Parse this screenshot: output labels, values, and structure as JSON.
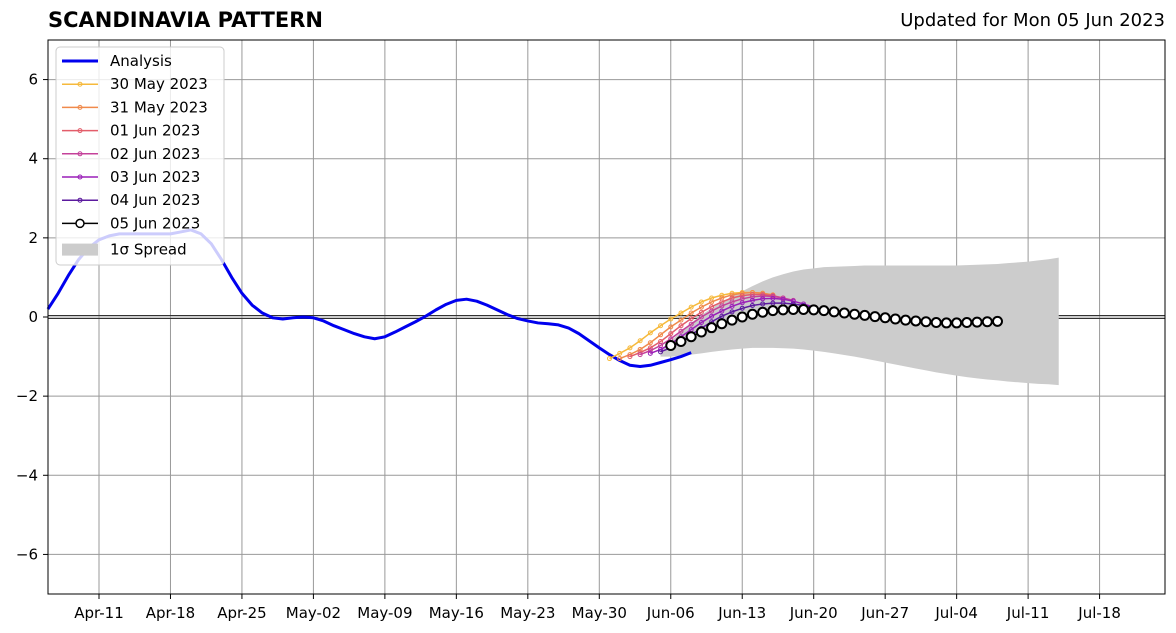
{
  "chart_data": {
    "type": "line",
    "title": "SCANDINAVIA PATTERN",
    "subtitle": "Updated for Mon 05 Jun 2023",
    "ylim": [
      -7,
      7
    ],
    "yticks": [
      -6,
      -4,
      -2,
      0,
      2,
      4,
      6
    ],
    "ytick_labels": [
      "−6",
      "−4",
      "−2",
      "0",
      "2",
      "4",
      "6"
    ],
    "xticks": [
      "Apr-11",
      "Apr-18",
      "Apr-25",
      "May-02",
      "May-09",
      "May-16",
      "May-23",
      "May-30",
      "Jun-06",
      "Jun-13",
      "Jun-20",
      "Jun-27",
      "Jul-04",
      "Jul-11",
      "Jul-18"
    ],
    "xlim_days": [
      -27,
      82
    ],
    "grid": true,
    "legend_position": "top-left",
    "legend": [
      "Analysis",
      "30 May 2023",
      "31 May 2023",
      "01 Jun 2023",
      "02 Jun 2023",
      "03 Jun 2023",
      "04 Jun 2023",
      "05 Jun 2023",
      "1σ Spread"
    ],
    "analysis": {
      "name": "Analysis",
      "color": "#0000ee",
      "x_start": "2023-04-06",
      "values": [
        0.2,
        0.6,
        1.05,
        1.45,
        1.75,
        1.95,
        2.05,
        2.1,
        2.1,
        2.1,
        2.1,
        2.1,
        2.1,
        2.15,
        2.2,
        2.1,
        1.85,
        1.45,
        1.0,
        0.6,
        0.3,
        0.1,
        -0.02,
        -0.05,
        -0.02,
        0.0,
        -0.02,
        -0.1,
        -0.22,
        -0.32,
        -0.42,
        -0.5,
        -0.55,
        -0.5,
        -0.38,
        -0.25,
        -0.12,
        0.02,
        0.18,
        0.32,
        0.42,
        0.45,
        0.4,
        0.3,
        0.18,
        0.06,
        -0.04,
        -0.1,
        -0.15,
        -0.17,
        -0.2,
        -0.28,
        -0.42,
        -0.6,
        -0.78,
        -0.95,
        -1.1,
        -1.22,
        -1.25,
        -1.22,
        -1.15,
        -1.08,
        -1.0,
        -0.9
      ]
    },
    "forecasts": [
      {
        "name": "30 May 2023",
        "color": "#f6b93b",
        "x_start": "2023-05-31",
        "values": [
          -1.05,
          -0.92,
          -0.78,
          -0.6,
          -0.4,
          -0.22,
          -0.05,
          0.1,
          0.25,
          0.38,
          0.48,
          0.55,
          0.6,
          0.62,
          0.62,
          0.6,
          0.55
        ]
      },
      {
        "name": "31 May 2023",
        "color": "#f08a4b",
        "x_start": "2023-06-01",
        "values": [
          -1.05,
          -0.95,
          -0.82,
          -0.65,
          -0.45,
          -0.25,
          -0.08,
          0.1,
          0.25,
          0.38,
          0.48,
          0.56,
          0.6,
          0.62,
          0.6,
          0.56
        ]
      },
      {
        "name": "01 Jun 2023",
        "color": "#e35d6a",
        "x_start": "2023-06-02",
        "values": [
          -1.0,
          -0.9,
          -0.78,
          -0.62,
          -0.42,
          -0.22,
          -0.04,
          0.12,
          0.26,
          0.38,
          0.48,
          0.54,
          0.57,
          0.57,
          0.54,
          0.48
        ]
      },
      {
        "name": "02 Jun 2023",
        "color": "#c4419a",
        "x_start": "2023-06-03",
        "values": [
          -0.95,
          -0.85,
          -0.72,
          -0.55,
          -0.36,
          -0.18,
          0.0,
          0.15,
          0.28,
          0.38,
          0.46,
          0.51,
          0.53,
          0.52,
          0.48,
          0.42
        ]
      },
      {
        "name": "03 Jun 2023",
        "color": "#9a1fb8",
        "x_start": "2023-06-04",
        "values": [
          -0.92,
          -0.82,
          -0.68,
          -0.5,
          -0.32,
          -0.14,
          0.02,
          0.15,
          0.27,
          0.36,
          0.42,
          0.46,
          0.47,
          0.45,
          0.4,
          0.33,
          0.25
        ]
      },
      {
        "name": "04 Jun 2023",
        "color": "#5b1a9e",
        "x_start": "2023-06-05",
        "values": [
          -0.88,
          -0.78,
          -0.63,
          -0.45,
          -0.28,
          -0.12,
          0.02,
          0.13,
          0.22,
          0.29,
          0.33,
          0.35,
          0.35,
          0.33,
          0.29,
          0.23,
          0.17
        ]
      }
    ],
    "current": {
      "name": "05 Jun 2023",
      "color": "#000000",
      "x_start": "2023-06-06",
      "values": [
        -0.72,
        -0.62,
        -0.5,
        -0.38,
        -0.27,
        -0.17,
        -0.08,
        0.0,
        0.07,
        0.12,
        0.16,
        0.18,
        0.19,
        0.19,
        0.18,
        0.16,
        0.13,
        0.1,
        0.07,
        0.04,
        0.01,
        -0.02,
        -0.05,
        -0.08,
        -0.1,
        -0.12,
        -0.14,
        -0.15,
        -0.15,
        -0.14,
        -0.13,
        -0.12,
        -0.11
      ]
    },
    "spread": {
      "name": "1σ Spread",
      "color": "#cccccc",
      "x_start": "2023-06-05",
      "upper": [
        -0.85,
        -0.6,
        -0.38,
        -0.15,
        0.05,
        0.22,
        0.38,
        0.52,
        0.65,
        0.78,
        0.9,
        1.0,
        1.08,
        1.15,
        1.2,
        1.23,
        1.26,
        1.27,
        1.28,
        1.29,
        1.3,
        1.3,
        1.3,
        1.3,
        1.3,
        1.3,
        1.3,
        1.3,
        1.3,
        1.3,
        1.31,
        1.32,
        1.33,
        1.34,
        1.36,
        1.38,
        1.4,
        1.43,
        1.46,
        1.5
      ],
      "lower": [
        -1.0,
        -1.0,
        -0.98,
        -0.95,
        -0.92,
        -0.88,
        -0.85,
        -0.82,
        -0.8,
        -0.78,
        -0.78,
        -0.78,
        -0.79,
        -0.8,
        -0.82,
        -0.85,
        -0.88,
        -0.92,
        -0.96,
        -1.0,
        -1.05,
        -1.1,
        -1.15,
        -1.2,
        -1.25,
        -1.3,
        -1.35,
        -1.4,
        -1.44,
        -1.48,
        -1.52,
        -1.55,
        -1.58,
        -1.6,
        -1.63,
        -1.65,
        -1.67,
        -1.69,
        -1.7,
        -1.72
      ]
    }
  }
}
